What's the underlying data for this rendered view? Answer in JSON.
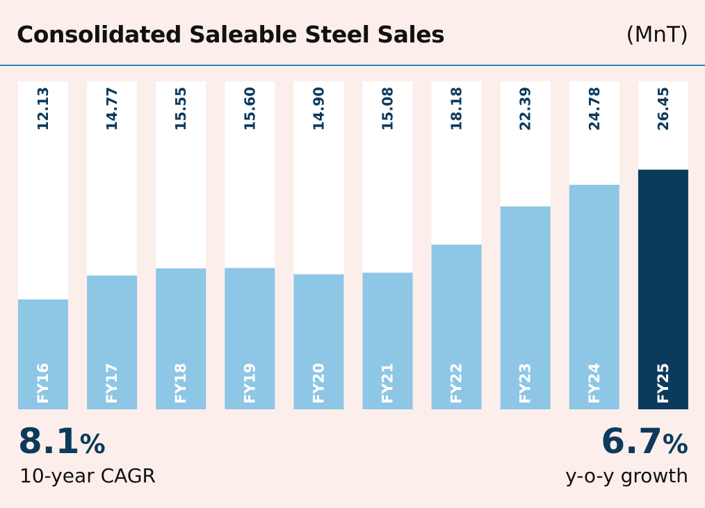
{
  "header": {
    "title": "Consolidated Saleable Steel Sales",
    "unit": "(MnT)"
  },
  "stats": {
    "cagr": {
      "value": "8.1",
      "suffix": "%",
      "label": "10-year CAGR"
    },
    "yoy": {
      "value": "6.7",
      "suffix": "%",
      "label": "y-o-y growth"
    }
  },
  "colors": {
    "bar": "#8ec6e6",
    "highlight": "#0b3a5c",
    "track": "#ffffff",
    "label_on_light": "#0b3a5c",
    "label_on_bar": "#ffffff"
  },
  "chart_data": {
    "type": "bar",
    "title": "Consolidated Saleable Steel Sales",
    "unit": "(MnT)",
    "categories": [
      "FY16",
      "FY17",
      "FY18",
      "FY19",
      "FY20",
      "FY21",
      "FY22",
      "FY23",
      "FY24",
      "FY25"
    ],
    "values": [
      12.13,
      14.77,
      15.55,
      15.6,
      14.9,
      15.08,
      18.18,
      22.39,
      24.78,
      26.45
    ],
    "value_labels": [
      "12.13",
      "14.77",
      "15.55",
      "15.60",
      "14.90",
      "15.08",
      "18.18",
      "22.39",
      "24.78",
      "26.45"
    ],
    "highlight_category": "FY25",
    "ylim": [
      0,
      36.2
    ]
  }
}
